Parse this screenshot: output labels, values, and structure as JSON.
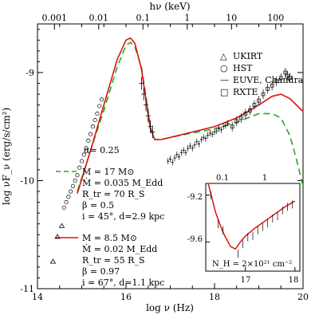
{
  "chart_data": {
    "type": "scatter",
    "xlabel": "log ν (Hz)",
    "ylabel": "log νF_ν (erg/s/cm²)",
    "toplabel": "hν (keV)",
    "xlim": [
      14,
      20
    ],
    "ylim": [
      -11,
      -8.55
    ],
    "x_ticks": [
      "14",
      "16",
      "18",
      "20"
    ],
    "y_ticks": [
      "-11",
      "-10",
      "-9"
    ],
    "top_ticks": [
      "0.001",
      "0.01",
      "0.1",
      "1",
      "10",
      "100"
    ],
    "legend": [
      {
        "symbol": "△",
        "label": "UKIRT"
      },
      {
        "symbol": "○",
        "label": "HST"
      },
      {
        "symbol": "—",
        "label": "EUVE, Chandra"
      },
      {
        "symbol": "□",
        "label": "RXTE"
      }
    ],
    "alpha_label": "α= 0.25",
    "model_green": {
      "color": "#22aa22",
      "dash": "dashed",
      "params": [
        "M = 17 M⊙",
        "Ṁ = 0.035 M_Edd",
        "R_tr = 70 R_S",
        "β = 0.5",
        "i = 45°, d=2.9 kpc"
      ],
      "x": [
        14.9,
        15.2,
        15.5,
        15.8,
        16.0,
        16.1,
        16.2,
        16.35,
        16.45,
        16.55,
        16.65,
        16.8,
        17.0,
        17.5,
        18.0,
        18.5,
        19.0,
        19.3,
        19.5,
        19.7,
        19.85,
        20.0
      ],
      "y": [
        -10.1,
        -9.72,
        -9.35,
        -8.95,
        -8.75,
        -8.72,
        -8.76,
        -8.95,
        -9.22,
        -9.5,
        -9.62,
        -9.62,
        -9.6,
        -9.56,
        -9.52,
        -9.46,
        -9.38,
        -9.38,
        -9.42,
        -9.58,
        -9.8,
        -10.05
      ]
    },
    "model_red": {
      "color": "#dd1111",
      "dash": "solid",
      "params": [
        "M = 8.5 M⊙",
        "Ṁ = 0.02 M_Edd",
        "R_tr = 55 R_S",
        "β = 0.97",
        "i = 67°, d=1.1 kpc"
      ],
      "x": [
        14.9,
        15.2,
        15.5,
        15.8,
        16.0,
        16.1,
        16.2,
        16.35,
        16.45,
        16.55,
        16.65,
        16.8,
        17.0,
        17.5,
        18.0,
        18.5,
        19.0,
        19.3,
        19.5,
        19.7,
        19.85,
        20.0
      ],
      "y": [
        -10.12,
        -9.72,
        -9.3,
        -8.88,
        -8.7,
        -8.68,
        -8.73,
        -8.97,
        -9.25,
        -9.52,
        -9.62,
        -9.62,
        -9.6,
        -9.55,
        -9.5,
        -9.42,
        -9.3,
        -9.22,
        -9.2,
        -9.24,
        -9.3,
        -9.36
      ]
    },
    "ukirt": {
      "x": [
        14.35,
        14.45,
        14.55
      ],
      "y": [
        -10.75,
        -10.52,
        -10.42
      ]
    },
    "hst": {
      "x": [
        14.6,
        14.65,
        14.7,
        14.75,
        14.8,
        14.85,
        14.9,
        14.95,
        15.0,
        15.05,
        15.1,
        15.15,
        15.2,
        15.25,
        15.3,
        15.35,
        15.4,
        15.45
      ],
      "y": [
        -10.25,
        -10.2,
        -10.15,
        -10.1,
        -10.05,
        -10.0,
        -9.95,
        -9.88,
        -9.82,
        -9.76,
        -9.7,
        -9.63,
        -9.57,
        -9.5,
        -9.44,
        -9.38,
        -9.31,
        -9.25
      ]
    },
    "euve": {
      "x": [
        16.35,
        16.4,
        16.45,
        16.5,
        16.55,
        16.6
      ],
      "y": [
        -9.1,
        -9.2,
        -9.3,
        -9.4,
        -9.5,
        -9.55
      ]
    },
    "chandra": {
      "x": [
        16.95,
        17.0,
        17.05,
        17.1,
        17.15,
        17.2,
        17.25,
        17.3,
        17.35,
        17.4,
        17.45,
        17.5,
        17.55,
        17.6,
        17.65,
        17.7,
        17.75,
        17.8,
        17.85,
        17.9,
        17.95,
        18.0,
        18.05,
        18.1,
        18.15,
        18.2,
        18.25,
        18.3
      ],
      "y": [
        -9.82,
        -9.8,
        -9.83,
        -9.79,
        -9.76,
        -9.78,
        -9.74,
        -9.72,
        -9.74,
        -9.7,
        -9.68,
        -9.7,
        -9.67,
        -9.64,
        -9.66,
        -9.62,
        -9.6,
        -9.61,
        -9.58,
        -9.56,
        -9.57,
        -9.55,
        -9.54,
        -9.52,
        -9.53,
        -9.5,
        -9.49,
        -9.47
      ]
    },
    "rxte": {
      "x": [
        18.4,
        18.5,
        18.6,
        18.7,
        18.8,
        18.9,
        19.0,
        19.1,
        19.2,
        19.3,
        19.4,
        19.5,
        19.6,
        19.65,
        19.7
      ],
      "y": [
        -9.5,
        -9.45,
        -9.42,
        -9.38,
        -9.35,
        -9.3,
        -9.26,
        -9.2,
        -9.15,
        -9.12,
        -9.08,
        -9.05,
        -9.0,
        -9.03,
        -9.05
      ]
    },
    "inset": {
      "top_ticks": [
        "0.1",
        "1"
      ],
      "y_ticks": [
        "-9.2",
        "-9.6"
      ],
      "x_ticks": [
        "17",
        "18"
      ],
      "nh_label": "N_H = 2×10²¹ cm⁻²"
    }
  }
}
